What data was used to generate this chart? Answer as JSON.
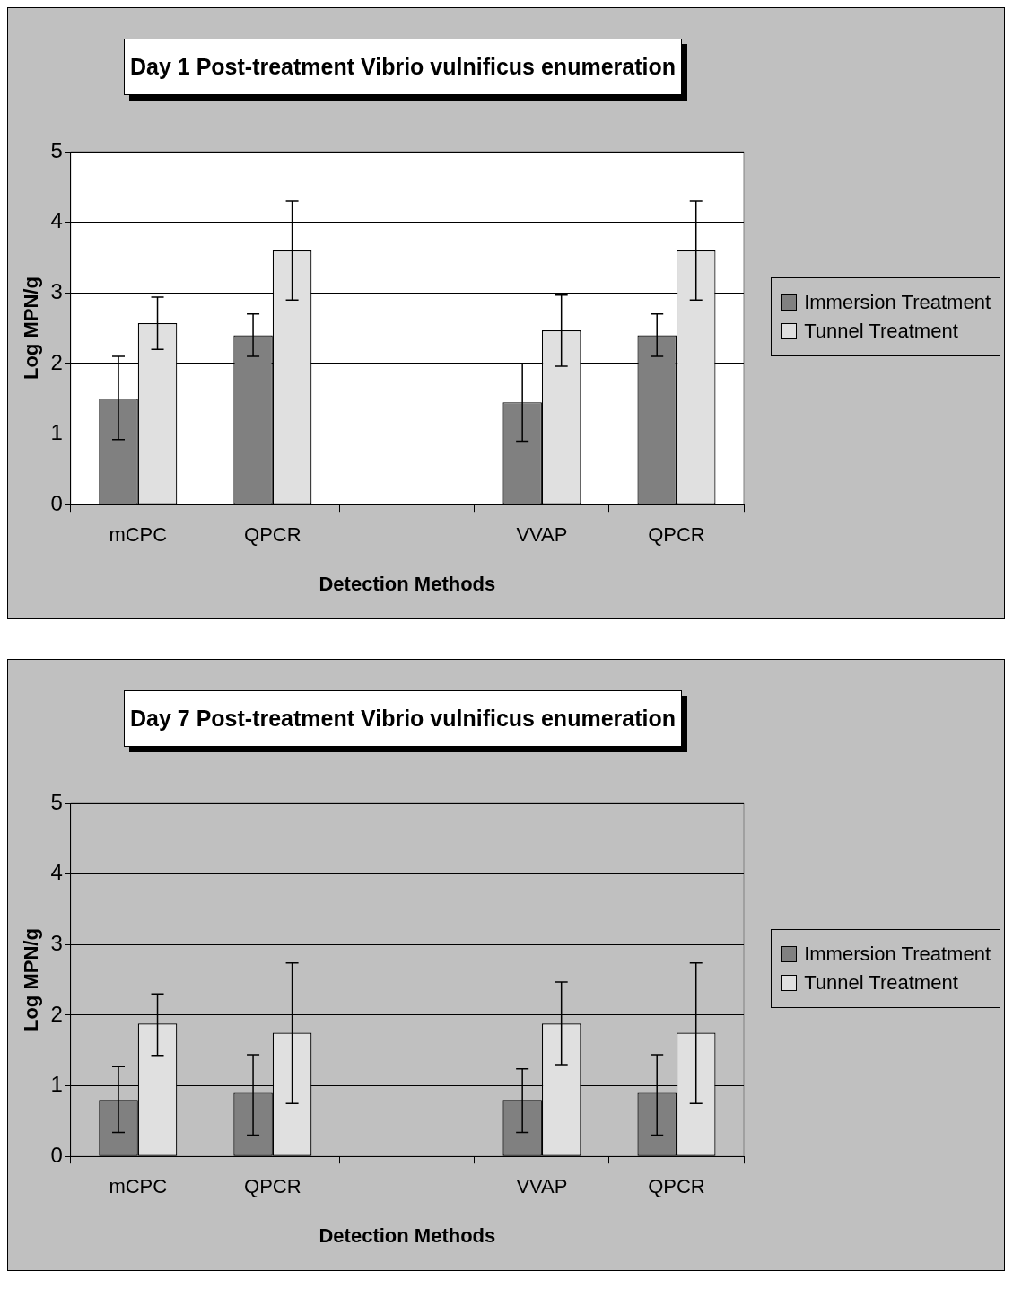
{
  "chart_data": [
    {
      "type": "bar",
      "title": "Day 1 Post-treatment Vibrio vulnificus enumeration",
      "xlabel": "Detection Methods",
      "ylabel": "Log MPN/g",
      "categories": [
        "mCPC",
        "QPCR",
        null,
        "VVAP",
        "QPCR"
      ],
      "series": [
        {
          "name": "Immersion Treatment",
          "color": "#808080",
          "values": [
            1.5,
            2.4,
            null,
            1.45,
            2.4
          ],
          "errors": [
            [
              0.92,
              2.1
            ],
            [
              2.1,
              2.7
            ],
            null,
            [
              0.9,
              2.0
            ],
            [
              2.1,
              2.7
            ]
          ]
        },
        {
          "name": "Tunnel Treatment",
          "color": "#e0e0e0",
          "values": [
            2.57,
            3.6,
            null,
            2.47,
            3.6
          ],
          "errors": [
            [
              2.2,
              2.94
            ],
            [
              2.9,
              4.3
            ],
            null,
            [
              1.96,
              2.97
            ],
            [
              2.9,
              4.3
            ]
          ]
        }
      ],
      "ylim": [
        0,
        5
      ],
      "yticks": [
        0,
        1,
        2,
        3,
        4,
        5
      ],
      "grid": "y",
      "legend": "right"
    },
    {
      "type": "bar",
      "title": "Day 7 Post-treatment Vibrio vulnificus enumeration",
      "xlabel": "Detection Methods",
      "ylabel": "Log MPN/g",
      "categories": [
        "mCPC",
        "QPCR",
        null,
        "VVAP",
        "QPCR"
      ],
      "series": [
        {
          "name": "Immersion Treatment",
          "color": "#808080",
          "values": [
            0.8,
            0.9,
            null,
            0.8,
            0.9
          ],
          "errors": [
            [
              0.34,
              1.27
            ],
            [
              0.3,
              1.44
            ],
            null,
            [
              0.34,
              1.24
            ],
            [
              0.3,
              1.44
            ]
          ]
        },
        {
          "name": "Tunnel Treatment",
          "color": "#e0e0e0",
          "values": [
            1.88,
            1.75,
            null,
            1.88,
            1.75
          ],
          "errors": [
            [
              1.43,
              2.3
            ],
            [
              0.75,
              2.74
            ],
            null,
            [
              1.3,
              2.47
            ],
            [
              0.75,
              2.74
            ]
          ]
        }
      ],
      "ylim": [
        0,
        5
      ],
      "yticks": [
        0,
        1,
        2,
        3,
        4,
        5
      ],
      "grid": "y",
      "legend": "right"
    }
  ]
}
